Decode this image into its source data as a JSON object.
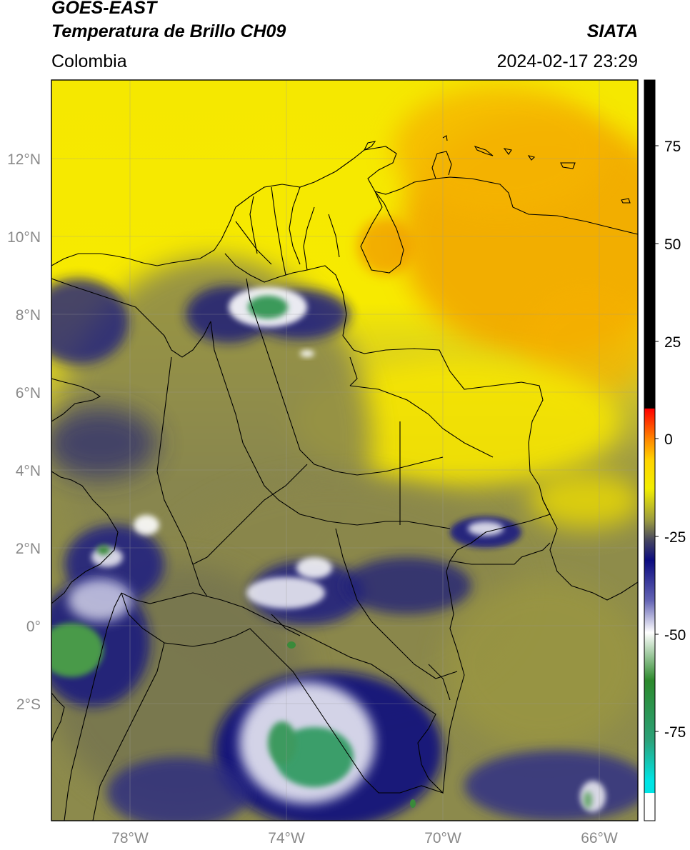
{
  "header": {
    "line1": "GOES-EAST",
    "line2": "Temperatura de Brillo CH09",
    "brand": "SIATA",
    "region": "Colombia",
    "timestamp": "2024-02-17 23:29"
  },
  "map": {
    "lon_range": [
      -80,
      -65
    ],
    "lat_range": [
      -5,
      14
    ],
    "lat_ticks": [
      "12°N",
      "10°N",
      "8°N",
      "6°N",
      "4°N",
      "2°N",
      "0°",
      "2°S"
    ],
    "lon_ticks": [
      "78°W",
      "74°W",
      "70°W",
      "66°W"
    ],
    "gridlines": true
  },
  "colorbar": {
    "ticks": [
      "75",
      "50",
      "25",
      "0",
      "-25",
      "-50",
      "-75"
    ],
    "stops": [
      {
        "value": 90,
        "color": "#000000"
      },
      {
        "value": 8,
        "color": "#000000"
      },
      {
        "value": 7.9,
        "color": "#ff0000"
      },
      {
        "value": 0,
        "color": "#ff8c00"
      },
      {
        "value": -5,
        "color": "#ffd400"
      },
      {
        "value": -12,
        "color": "#f2ee00"
      },
      {
        "value": -20,
        "color": "#9a9a40"
      },
      {
        "value": -25,
        "color": "#454560"
      },
      {
        "value": -30,
        "color": "#0c0c80"
      },
      {
        "value": -40,
        "color": "#6464b4"
      },
      {
        "value": -48,
        "color": "#ffffff"
      },
      {
        "value": -60,
        "color": "#2c8a2c"
      },
      {
        "value": -75,
        "color": "#2ca27a"
      },
      {
        "value": -85,
        "color": "#00e4e4"
      },
      {
        "value": -88,
        "color": "#00e4e4"
      },
      {
        "value": -88.1,
        "color": "#ffffff"
      },
      {
        "value": -95,
        "color": "#ffffff"
      }
    ]
  }
}
